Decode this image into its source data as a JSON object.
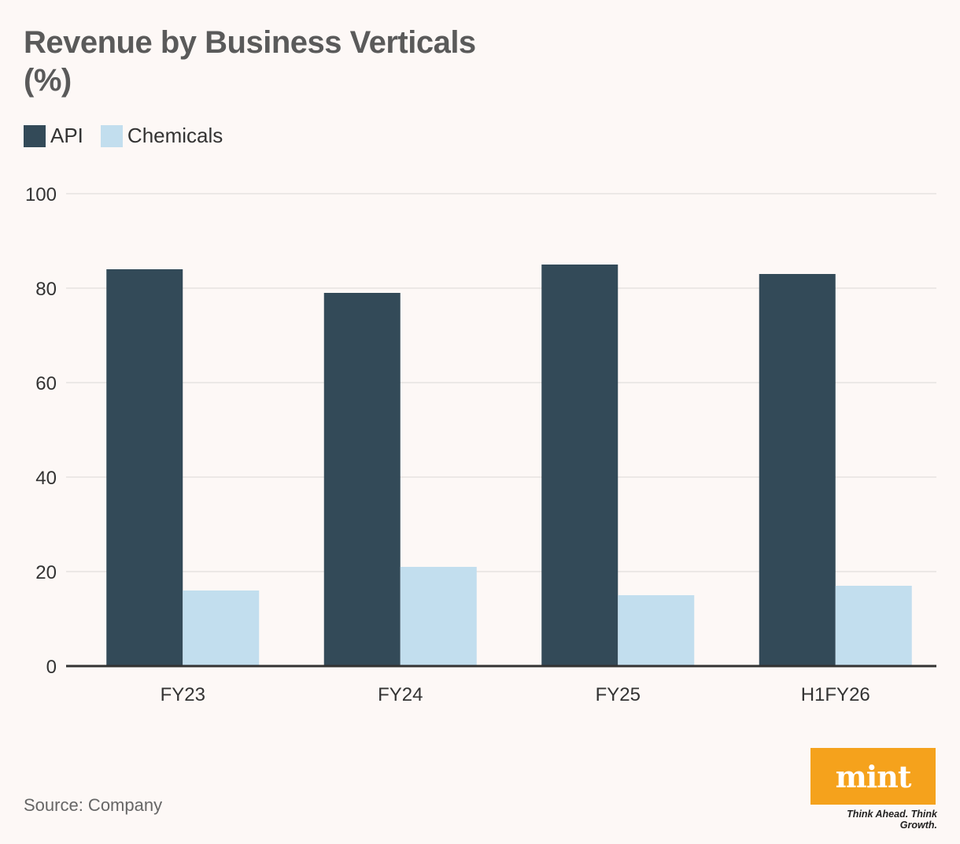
{
  "header": {
    "title": "Revenue by Business Verticals (%)"
  },
  "chart_data": {
    "type": "bar",
    "title": "Revenue by Business Verticals (%)",
    "categories": [
      "FY23",
      "FY24",
      "FY25",
      "H1FY26"
    ],
    "series": [
      {
        "name": "API",
        "values": [
          84,
          79,
          85,
          83
        ],
        "color": "#334a58"
      },
      {
        "name": "Chemicals",
        "values": [
          16,
          21,
          15,
          17
        ],
        "color": "#c2deee"
      }
    ],
    "yticks": [
      0,
      20,
      40,
      60,
      80,
      100
    ],
    "ylim": [
      0,
      100
    ],
    "xlabel": "",
    "ylabel": "",
    "grid": true,
    "legend": "top-left"
  },
  "footer": {
    "source": "Source: Company",
    "logo_text": "mint",
    "tagline": "Think Ahead. Think Growth."
  },
  "colors": {
    "background": "#fdf8f6",
    "gridline": "#e6e2e0",
    "axis": "#333333",
    "logo": "#f5a21c"
  }
}
